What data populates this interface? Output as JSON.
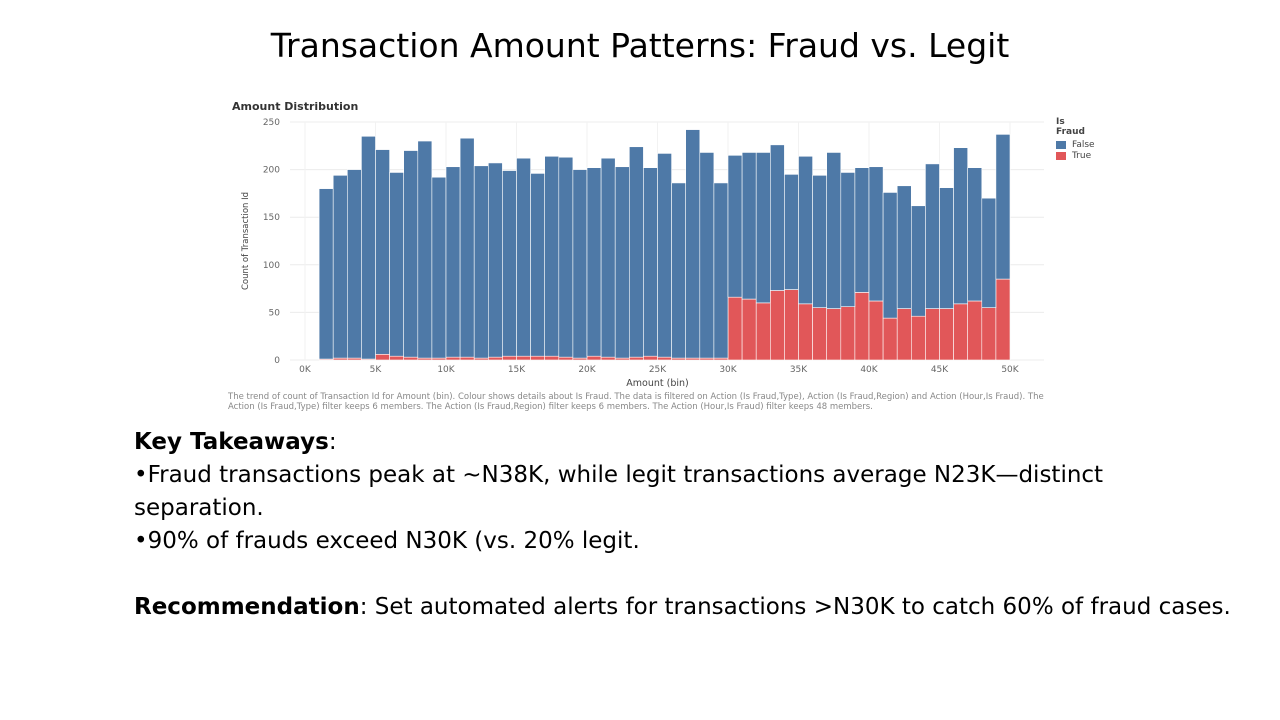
{
  "slide_title": "Transaction Amount Patterns: Fraud vs. Legit",
  "chart_data": {
    "type": "bar",
    "stacked": true,
    "title": "Amount Distribution",
    "xlabel": "Amount (bin)",
    "ylabel": "Count of Transaction Id",
    "x_ticks": [
      "0K",
      "5K",
      "10K",
      "15K",
      "20K",
      "25K",
      "30K",
      "35K",
      "40K",
      "45K",
      "50K"
    ],
    "x_range": [
      0,
      50000
    ],
    "bin_width": 1000,
    "ylim": [
      0,
      250
    ],
    "y_ticks": [
      0,
      50,
      100,
      150,
      200,
      250
    ],
    "grid": true,
    "legend_title": "Is Fraud",
    "legend_position": "top-right",
    "bin_starts": [
      1000,
      2000,
      3000,
      4000,
      5000,
      6000,
      7000,
      8000,
      9000,
      10000,
      11000,
      12000,
      13000,
      14000,
      15000,
      16000,
      17000,
      18000,
      19000,
      20000,
      21000,
      22000,
      23000,
      24000,
      25000,
      26000,
      27000,
      28000,
      29000,
      30000,
      31000,
      32000,
      33000,
      34000,
      35000,
      36000,
      37000,
      38000,
      39000,
      40000,
      41000,
      42000,
      43000,
      44000,
      45000,
      46000,
      47000,
      48000,
      49000
    ],
    "series": [
      {
        "name": "False",
        "color": "#4e79a7",
        "values": [
          179,
          192,
          198,
          234,
          215,
          193,
          217,
          228,
          190,
          200,
          230,
          202,
          204,
          195,
          208,
          192,
          210,
          210,
          198,
          198,
          209,
          201,
          221,
          198,
          214,
          184,
          240,
          216,
          184,
          149,
          154,
          158,
          153,
          121,
          155,
          139,
          164,
          141,
          131,
          141,
          132,
          129,
          116,
          152,
          127,
          164,
          140,
          115,
          152
        ]
      },
      {
        "name": "True",
        "color": "#e15759",
        "values": [
          1,
          2,
          2,
          1,
          6,
          4,
          3,
          2,
          2,
          3,
          3,
          2,
          3,
          4,
          4,
          4,
          4,
          3,
          2,
          4,
          3,
          2,
          3,
          4,
          3,
          2,
          2,
          2,
          2,
          66,
          64,
          60,
          73,
          74,
          59,
          55,
          54,
          56,
          71,
          62,
          44,
          54,
          46,
          54,
          54,
          59,
          62,
          55,
          85
        ]
      }
    ]
  },
  "caption": "The trend of count of Transaction Id for Amount (bin).  Colour shows details about Is Fraud. The data is filtered on Action (Is Fraud,Type), Action (Is Fraud,Region) and Action (Hour,Is Fraud). The Action (Is Fraud,Type) filter keeps 6 members. The Action (Is Fraud,Region) filter keeps 6 members. The Action (Hour,Is Fraud) filter keeps 48 members.",
  "takeaways": {
    "heading": "Key Takeaways",
    "heading_suffix": ":",
    "bullet1": "•Fraud transactions peak at ~N38K, while legit transactions average N23K—distinct separation.",
    "bullet2": "•90% of frauds exceed N30K (vs. 20% legit.",
    "rec_heading": "Recommendation",
    "rec_text": ": Set automated alerts for transactions >N30K to catch 60% of fraud cases."
  }
}
